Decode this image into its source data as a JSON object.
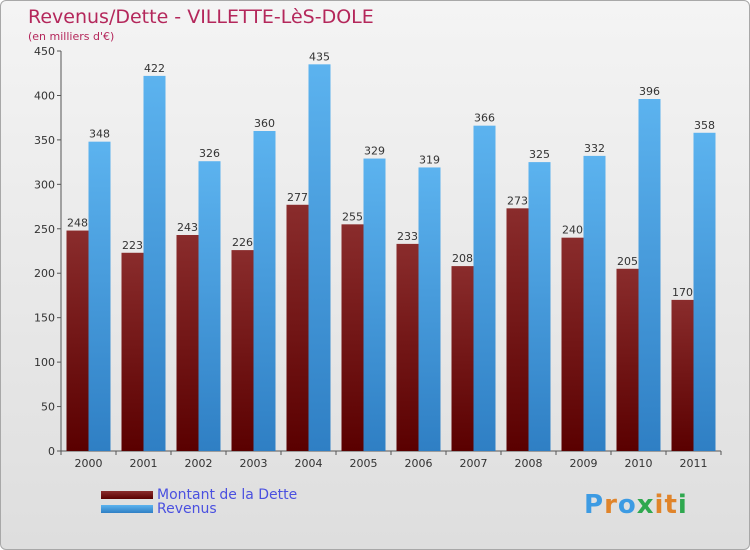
{
  "title": "Revenus/Dette - VILLETTE-LèS-DOLE",
  "subtitle": "(en milliers d'€)",
  "colors": {
    "title": "#b4275b",
    "dette": "#6b0d12",
    "revenus": "#3d9be3",
    "legend_text": "#4a50e0"
  },
  "logo": {
    "text": "Proxiti",
    "letter_colors": [
      "#3d9be3",
      "#e0842a",
      "#3d9be3",
      "#2fa84f",
      "#e0842a",
      "#e0842a",
      "#2fa84f"
    ]
  },
  "chart_data": {
    "type": "bar",
    "title": "Revenus/Dette - VILLETTE-LèS-DOLE",
    "categories": [
      "2000",
      "2001",
      "2002",
      "2003",
      "2004",
      "2005",
      "2006",
      "2007",
      "2008",
      "2009",
      "2010",
      "2011"
    ],
    "series": [
      {
        "name": "Montant de la Dette",
        "values": [
          248,
          223,
          243,
          226,
          277,
          255,
          233,
          208,
          273,
          240,
          205,
          170
        ]
      },
      {
        "name": "Revenus",
        "values": [
          348,
          422,
          326,
          360,
          435,
          329,
          319,
          366,
          325,
          332,
          396,
          358
        ]
      }
    ],
    "ylim": [
      0,
      450
    ],
    "yticks": [
      0,
      50,
      100,
      150,
      200,
      250,
      300,
      350,
      400,
      450
    ],
    "grid": false,
    "legend_position": "bottom-left"
  }
}
